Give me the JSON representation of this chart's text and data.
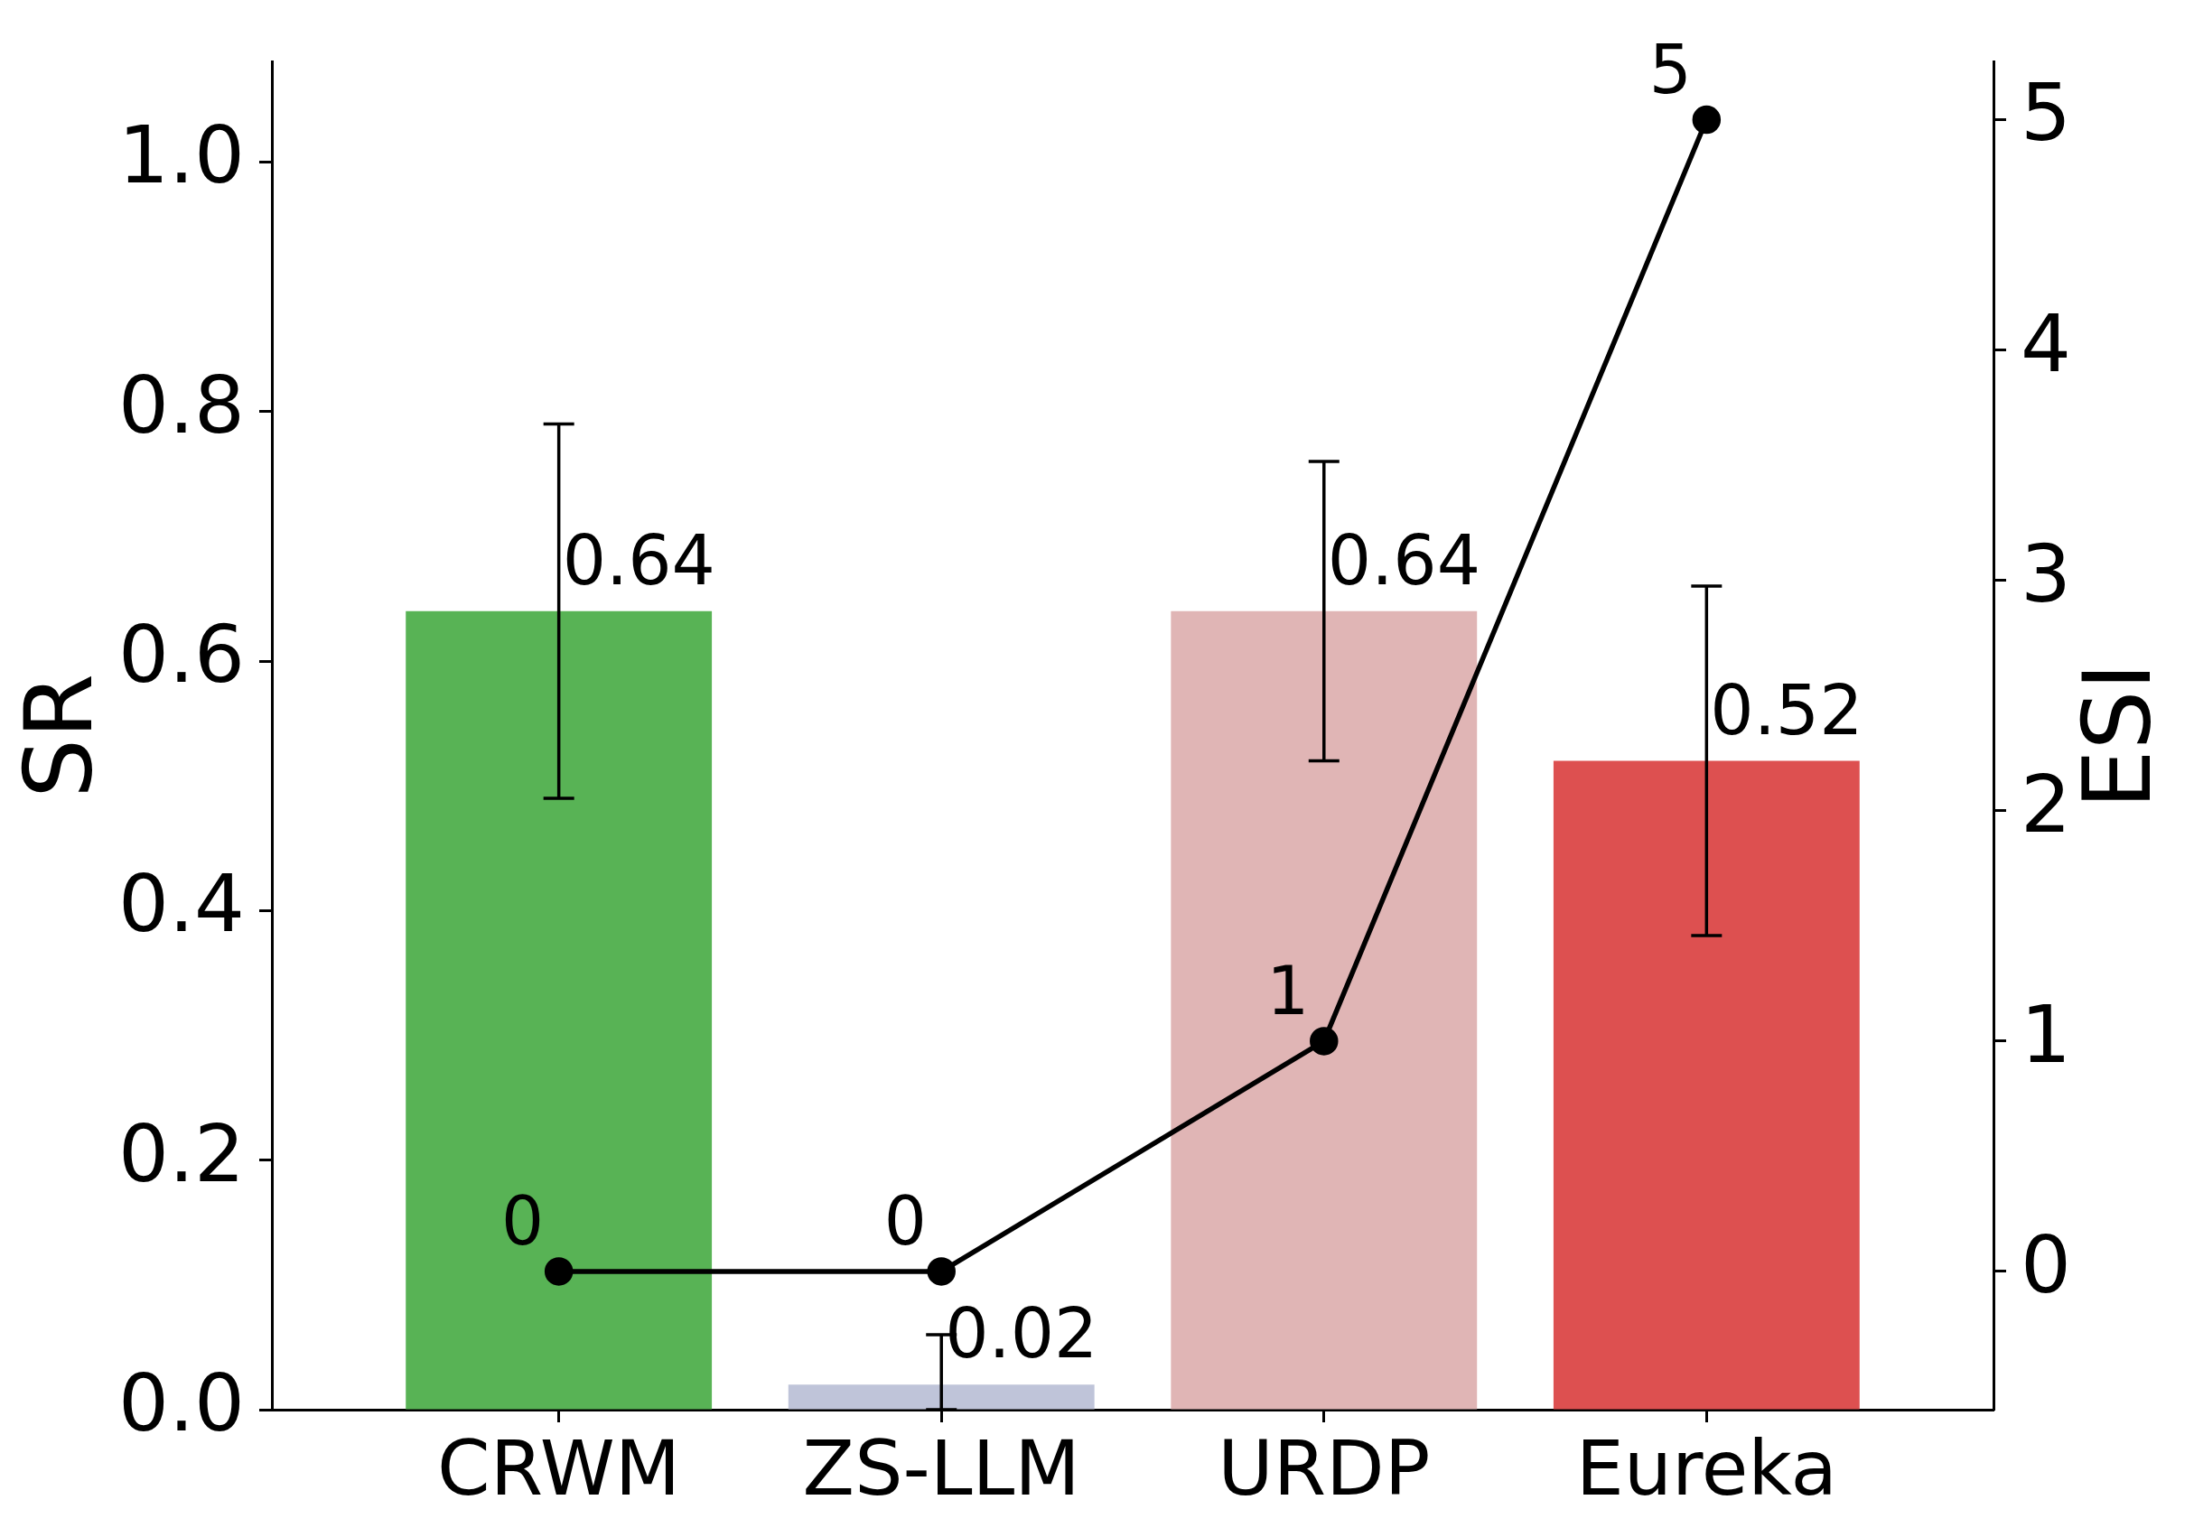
{
  "chart_data": {
    "type": "bar",
    "categories": [
      "CRWM",
      "ZS-LLM",
      "URDP",
      "Eureka"
    ],
    "ylabel": "SR",
    "y2label": "ESI",
    "ylim": [
      0,
      1.08
    ],
    "yticks": [
      {
        "value": 0,
        "label": "0.0"
      },
      0.2,
      0.4,
      0.6,
      0.8,
      {
        "value": 1,
        "label": "1.0"
      }
    ],
    "y2lim": [
      -0.6,
      5.25
    ],
    "y2ticks": [
      0,
      1,
      2,
      3,
      4,
      5
    ],
    "series": [
      {
        "colors": [
          "#58b355",
          "#bfc4d9",
          "#e0b5b5",
          "#dd5050"
        ],
        "values": [
          0.64,
          0.02,
          0.64,
          0.52
        ],
        "errors": [
          [
            0.49,
            0.79
          ],
          [
            0,
            0.06
          ],
          [
            0.52,
            0.76
          ],
          [
            0.38,
            0.66
          ]
        ]
      },
      {
        "type": "line",
        "axis": "y2",
        "color": "#000000",
        "values": [
          0,
          0,
          1,
          5
        ]
      }
    ],
    "marker": "circle",
    "line_style": "solid",
    "data_labels": true,
    "grid": false,
    "legend": false
  }
}
